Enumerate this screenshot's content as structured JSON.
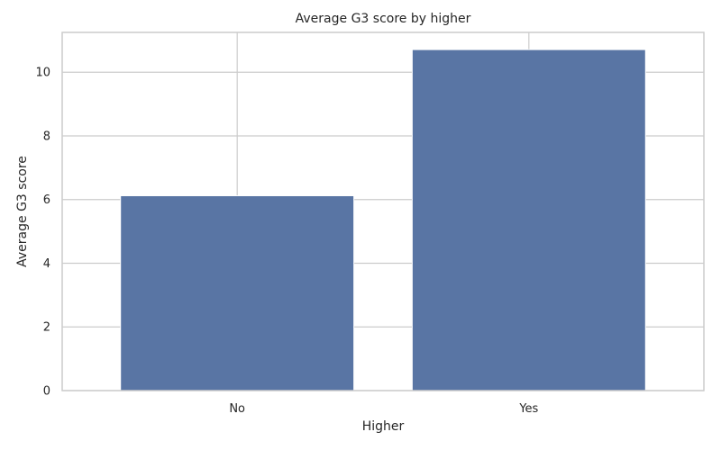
{
  "chart_data": {
    "type": "bar",
    "title": "Average G3 score by higher",
    "xlabel": "Higher",
    "ylabel": "Average G3 score",
    "categories": [
      "No",
      "Yes"
    ],
    "values": [
      6.12,
      10.71
    ],
    "ylim": [
      0,
      11.25
    ],
    "yticks": [
      0,
      2,
      4,
      6,
      8,
      10
    ],
    "grid": true,
    "bar_color": "#5975a4",
    "grid_color": "#cccccc",
    "legend": "none"
  }
}
